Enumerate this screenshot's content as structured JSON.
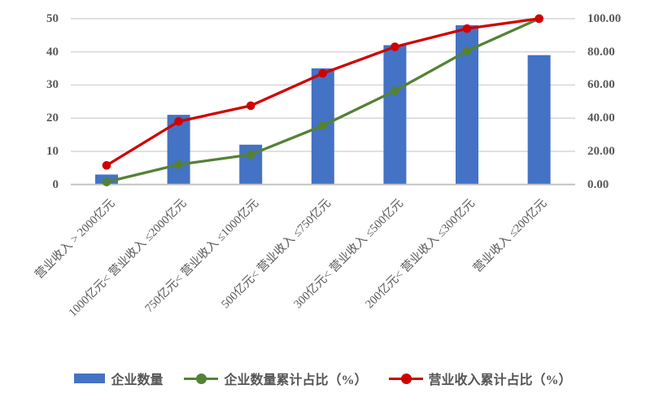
{
  "chart_data": {
    "type": "bar",
    "subtype": "pareto-combo-bar-line",
    "title": "",
    "categories": [
      "营业收入 > 2000亿元",
      "1000亿元< 营业收入 ≤2000亿元",
      "750亿元< 营业收入 ≤1000亿元",
      "500亿元< 营业收入 ≤750亿元",
      "300亿元< 营业收入 ≤500亿元",
      "200亿元< 营业收入 ≤300亿元",
      "营业收入 ≤200亿元"
    ],
    "series": [
      {
        "name": "企业数量",
        "type": "bar",
        "axis": "left",
        "color": "#4472C4",
        "values": [
          3,
          21,
          12,
          35,
          42,
          48,
          39
        ]
      },
      {
        "name": "企业数量累计占比（%）",
        "type": "line",
        "axis": "right",
        "color": "#548235",
        "values": [
          1.5,
          12.0,
          18.0,
          35.5,
          56.5,
          80.5,
          100.0
        ]
      },
      {
        "name": "营业收入累计占比（%）",
        "type": "line",
        "axis": "right",
        "color": "#D00000",
        "values": [
          11.5,
          38.0,
          47.5,
          67.0,
          83.0,
          94.0,
          100.0
        ]
      }
    ],
    "left_axis": {
      "min": 0,
      "max": 50,
      "step": 10,
      "ticks": [
        "0",
        "10",
        "20",
        "30",
        "40",
        "50"
      ]
    },
    "right_axis": {
      "min": 0,
      "max": 100,
      "step": 20,
      "ticks": [
        "0.00",
        "20.00",
        "40.00",
        "60.00",
        "80.00",
        "100.00"
      ]
    },
    "grid": true,
    "legend_position": "bottom"
  },
  "colors": {
    "background": "#FFFFFF",
    "gridline": "#D9D9D9",
    "axis_line": "#BFBFBF",
    "tick_text": "#595959",
    "legend_text": "#545454"
  }
}
